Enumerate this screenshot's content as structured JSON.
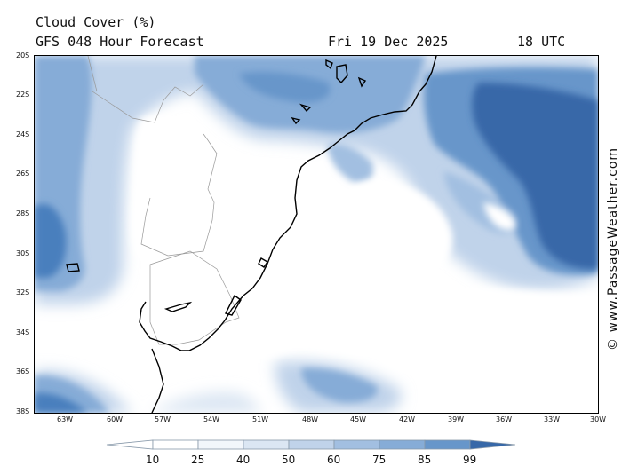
{
  "header": {
    "title": "Cloud Cover (%)",
    "subtitle": "GFS 048 Hour Forecast",
    "date": "Fri 19 Dec 2025",
    "time": "18 UTC"
  },
  "map": {
    "lat_labels": [
      "20S",
      "22S",
      "24S",
      "26S",
      "28S",
      "30S",
      "32S",
      "34S",
      "36S",
      "38S"
    ],
    "lon_labels": [
      "63W",
      "60W",
      "57W",
      "54W",
      "51W",
      "48W",
      "45W",
      "42W",
      "39W",
      "36W",
      "33W",
      "30W"
    ],
    "region": "South America — southern Brazil / Uruguay / South Atlantic",
    "field": "cloud cover"
  },
  "credit": "© www.PassageWeather.com",
  "colorbar": {
    "levels": [
      "10",
      "25",
      "40",
      "50",
      "60",
      "75",
      "85",
      "99"
    ],
    "colors": [
      "#ffffff",
      "#f2f6fb",
      "#dbe6f3",
      "#c0d3ea",
      "#a2bfe1",
      "#86acd7",
      "#6796ca",
      "#4a7fbd",
      "#3768a8"
    ]
  }
}
